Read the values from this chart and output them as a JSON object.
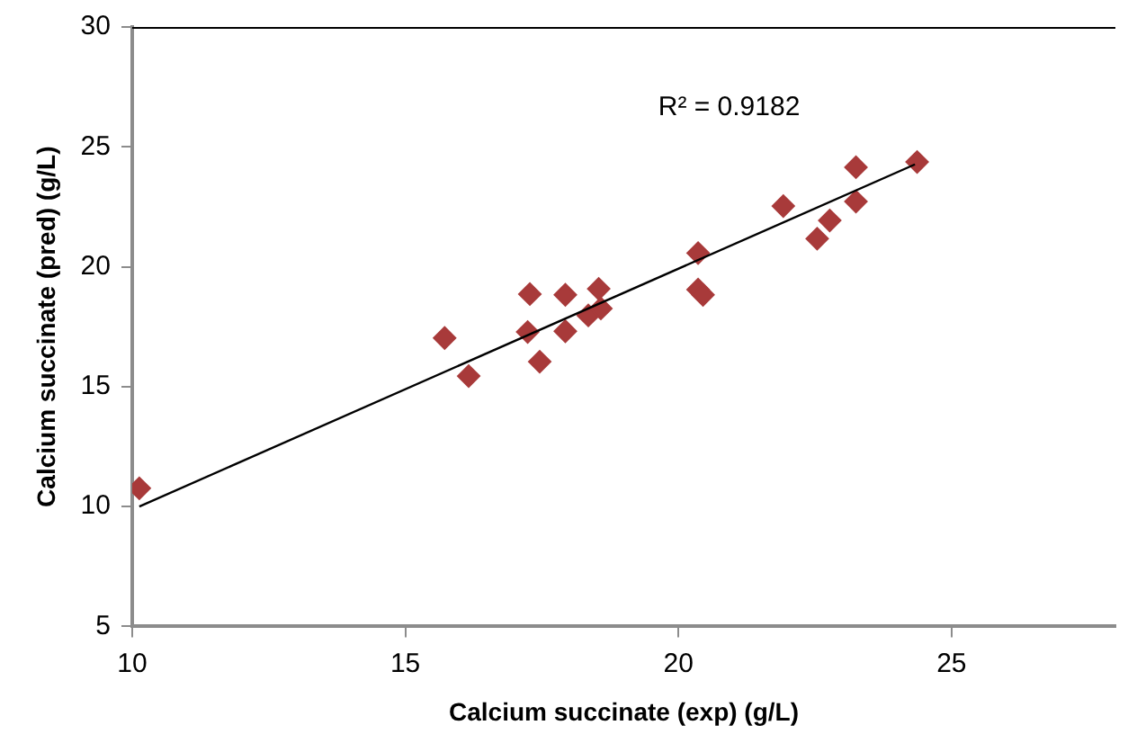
{
  "chart_data": {
    "type": "scatter",
    "xlabel": "Calcium succinate (exp) (g/L)",
    "ylabel": "Calcium succinate (pred) (g/L)",
    "xlim": [
      10,
      28
    ],
    "xticks": [
      10,
      15,
      20,
      25
    ],
    "ylim": [
      5,
      30
    ],
    "yticks": [
      5,
      10,
      15,
      20,
      25,
      30
    ],
    "grid": false,
    "legend": false,
    "marker": "diamond",
    "annotations": [
      "R² = 0.9182"
    ],
    "series": [
      {
        "color": "#a83a3a",
        "x": [
          10.13,
          15.72,
          16.16,
          17.28,
          17.24,
          17.46,
          17.93,
          17.93,
          18.35,
          18.54,
          18.58,
          20.36,
          20.36,
          20.45,
          21.92,
          22.54,
          22.77,
          23.25,
          23.25,
          24.37
        ],
        "values": [
          10.76,
          17.03,
          15.44,
          18.86,
          17.28,
          16.04,
          18.83,
          17.31,
          17.97,
          19.08,
          18.26,
          20.57,
          19.05,
          18.83,
          22.53,
          21.17,
          21.93,
          24.15,
          22.72,
          24.37
        ]
      },
      {
        "type": "line",
        "color": "#000000",
        "marker": "none",
        "x": [
          10.13,
          24.33
        ],
        "values": [
          10.0,
          24.27
        ]
      }
    ]
  }
}
